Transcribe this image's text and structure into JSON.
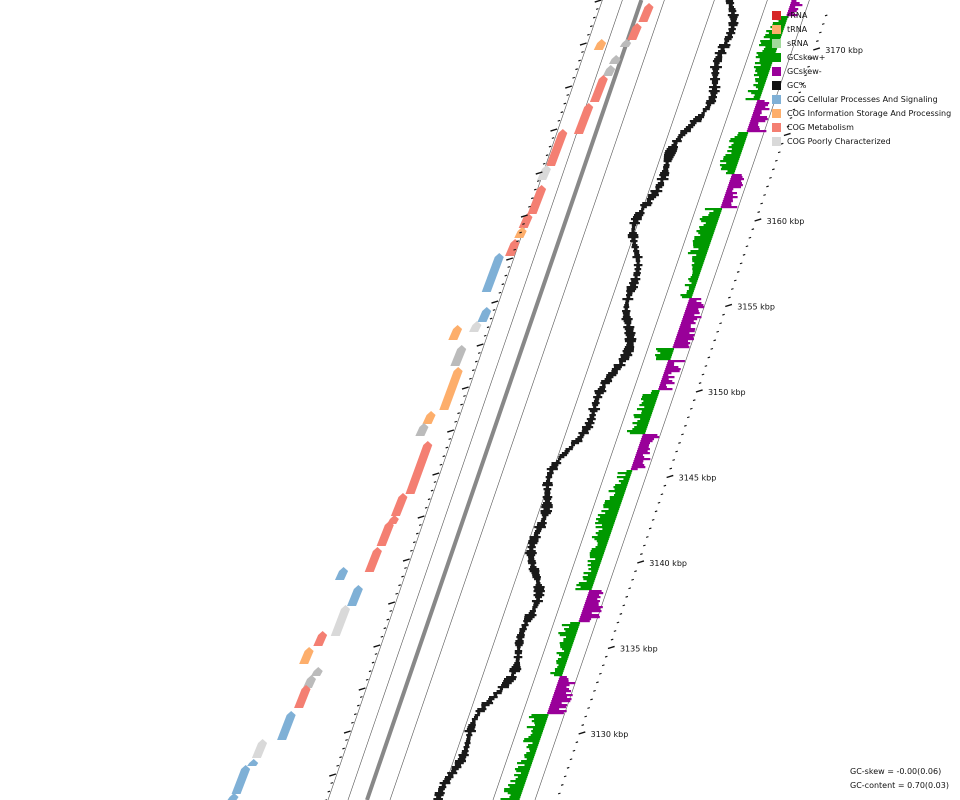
{
  "legend": [
    {
      "label": "rRNA",
      "color": "#d62728"
    },
    {
      "label": "tRNA",
      "color": "#fdae6b"
    },
    {
      "label": "sRNA",
      "color": "#a1d99b"
    },
    {
      "label": "GCskew+",
      "color": "#009900"
    },
    {
      "label": "GCskew-",
      "color": "#990099"
    },
    {
      "label": "GC%",
      "color": "#111111"
    },
    {
      "label": "COG Cellular Processes And Signaling",
      "color": "#7fb0d6"
    },
    {
      "label": "COG Information Storage And Processing",
      "color": "#fdae6b"
    },
    {
      "label": "COG Metabolism",
      "color": "#f47f72"
    },
    {
      "label": "COG Poorly Characterized",
      "color": "#d9d9d9"
    }
  ],
  "stats": {
    "gc_skew": "GC-skew = -0.00(0.06)",
    "gc_content": "GC-content = 0.70(0.03)"
  },
  "chart_data": {
    "type": "genome-map",
    "tick_labels": [
      "3170 kbp",
      "3160 kbp",
      "3155 kbp",
      "3150 kbp",
      "3145 kbp",
      "3140 kbp",
      "3135 kbp",
      "3130 kbp"
    ],
    "tick_kbp": [
      3170,
      3160,
      3155,
      3150,
      3145,
      3140,
      3135,
      3130
    ]
  }
}
